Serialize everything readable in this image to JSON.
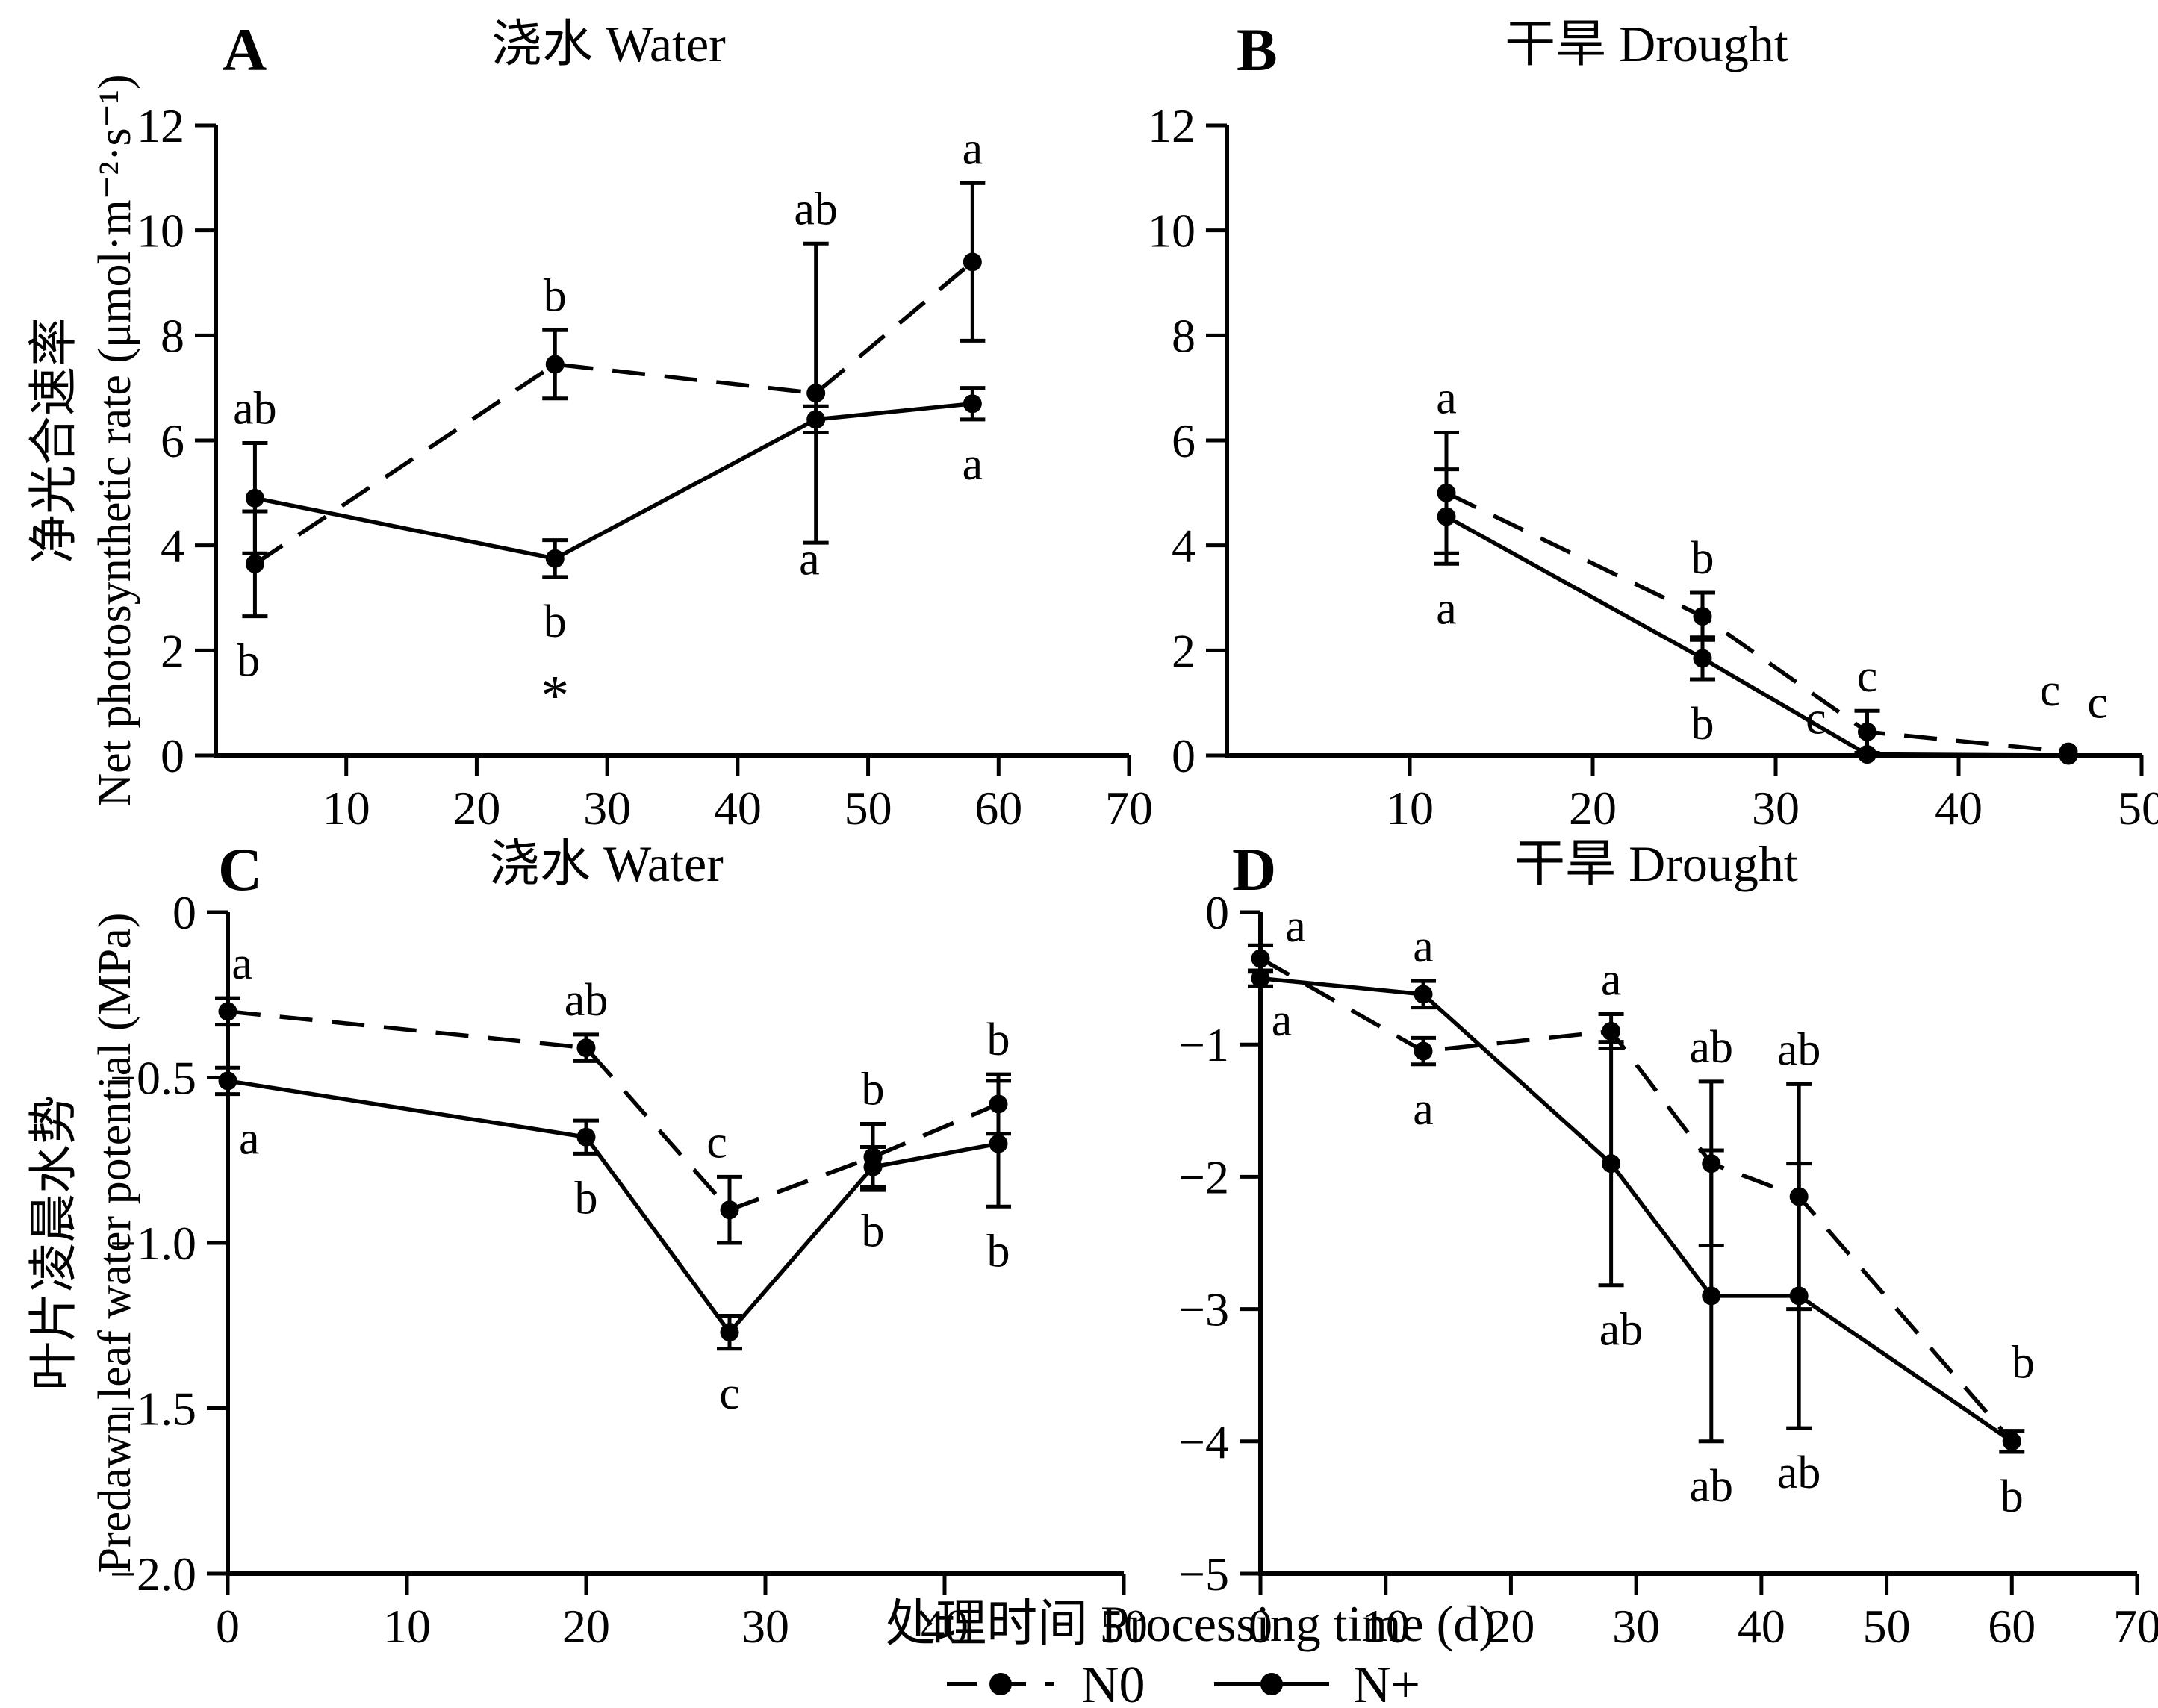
{
  "figure": {
    "background": "#ffffff",
    "ink": "#000000",
    "x_axis_title": "处理时间 Processing time (d)",
    "y_axis_titles": [
      {
        "zh": "净光合速率",
        "en": "Net photosynthetic rate (μmol·m⁻²·s⁻¹)"
      },
      {
        "zh": "叶片凌晨水势",
        "en": "Predawn leaf water potential (MPa)"
      }
    ],
    "legend": [
      {
        "label": "N0",
        "style": "dashed"
      },
      {
        "label": "N+",
        "style": "solid"
      }
    ]
  },
  "chart_data": [
    {
      "id": "A",
      "type": "line",
      "letter": "A",
      "title": "浇水 Water",
      "row": 0,
      "xlim": [
        0,
        70
      ],
      "ylim": [
        0,
        12
      ],
      "xticks": [
        10,
        20,
        30,
        40,
        50,
        60,
        70
      ],
      "xtick_labels": [
        "10",
        "20",
        "30",
        "40",
        "50",
        "60",
        "70"
      ],
      "yticks": [
        0,
        2,
        4,
        6,
        8,
        10,
        12
      ],
      "ytick_labels": [
        "0",
        "2",
        "4",
        "6",
        "8",
        "10",
        "12"
      ],
      "series": [
        {
          "name": "N0",
          "style": "dashed",
          "points": [
            {
              "x": 3,
              "y": 3.65,
              "err": 1.0,
              "label": "b",
              "label_pos": "below",
              "label_dx": -0.5
            },
            {
              "x": 26,
              "y": 7.45,
              "err": 0.65,
              "label": "b",
              "label_pos": "above"
            },
            {
              "x": 46,
              "y": 6.9,
              "err": 2.85,
              "label": "ab",
              "label_pos": "above"
            },
            {
              "x": 58,
              "y": 9.4,
              "err": 1.5,
              "label": "a",
              "label_pos": "above"
            }
          ]
        },
        {
          "name": "N+",
          "style": "solid",
          "points": [
            {
              "x": 3,
              "y": 4.9,
              "err": 1.05,
              "label": "ab",
              "label_pos": "above"
            },
            {
              "x": 26,
              "y": 3.75,
              "err": 0.35,
              "label": "b",
              "label_pos": "below",
              "extra": "*"
            },
            {
              "x": 46,
              "y": 6.4,
              "err": 0.25,
              "label": "a",
              "label_x": 45.5,
              "label_y": 3.45
            },
            {
              "x": 58,
              "y": 6.7,
              "err": 0.3,
              "label": "a",
              "label_pos": "below"
            }
          ]
        }
      ]
    },
    {
      "id": "B",
      "type": "line",
      "letter": "B",
      "title": "干旱 Drought",
      "row": 0,
      "xlim": [
        0,
        50
      ],
      "ylim": [
        0,
        12
      ],
      "xticks": [
        10,
        20,
        30,
        40,
        50
      ],
      "xtick_labels": [
        "10",
        "20",
        "30",
        "40",
        "50"
      ],
      "yticks": [
        0,
        2,
        4,
        6,
        8,
        10,
        12
      ],
      "ytick_labels": [
        "0",
        "2",
        "4",
        "6",
        "8",
        "10",
        "12"
      ],
      "series": [
        {
          "name": "N0",
          "style": "dashed",
          "points": [
            {
              "x": 12,
              "y": 5.0,
              "err": 1.15,
              "label": "a",
              "label_pos": "above"
            },
            {
              "x": 26,
              "y": 2.65,
              "err": 0.45,
              "label": "b",
              "label_pos": "above"
            },
            {
              "x": 35,
              "y": 0.45,
              "err": 0.4,
              "label": "c",
              "label_pos": "above"
            },
            {
              "x": 46,
              "y": 0.07,
              "err": 0,
              "label": "c",
              "label_x": 45.0,
              "label_y": 0.95
            }
          ]
        },
        {
          "name": "N+",
          "style": "solid",
          "points": [
            {
              "x": 12,
              "y": 4.55,
              "err": 0.9,
              "label": "a",
              "label_pos": "below"
            },
            {
              "x": 26,
              "y": 1.85,
              "err": 0.4,
              "label": "b",
              "label_pos": "below"
            },
            {
              "x": 35,
              "y": 0.02,
              "err": 0,
              "label": "c",
              "label_x": 32.2,
              "label_y": 0.42
            },
            {
              "x": 46,
              "y": 0.0,
              "err": 0,
              "label": "c",
              "label_x": 47.6,
              "label_y": 0.72
            }
          ]
        }
      ]
    },
    {
      "id": "C",
      "type": "line",
      "letter": "C",
      "title": "浇水 Water",
      "row": 1,
      "xlim": [
        0,
        50
      ],
      "ylim": [
        -2,
        0
      ],
      "xticks": [
        0,
        10,
        20,
        30,
        40,
        50
      ],
      "xtick_labels": [
        "0",
        "10",
        "20",
        "30",
        "40",
        "50"
      ],
      "yticks": [
        0,
        -0.5,
        -1.0,
        -1.5,
        -2.0
      ],
      "ytick_labels": [
        "0",
        "−0.5",
        "−1.0",
        "−1.5",
        "−2.0"
      ],
      "series": [
        {
          "name": "N0",
          "style": "dashed",
          "points": [
            {
              "x": 0,
              "y": -0.3,
              "err": 0.04,
              "label": "a",
              "label_pos": "above",
              "label_dx": 0.8
            },
            {
              "x": 20,
              "y": -0.41,
              "err": 0.04,
              "label": "ab",
              "label_pos": "above"
            },
            {
              "x": 28,
              "y": -0.9,
              "err": 0.1,
              "label": "c",
              "label_pos": "above",
              "label_dx": -0.7
            },
            {
              "x": 36,
              "y": -0.74,
              "err": 0.1,
              "label": "b",
              "label_pos": "above"
            },
            {
              "x": 43,
              "y": -0.58,
              "err": 0.09,
              "label": "b",
              "label_pos": "above"
            }
          ]
        },
        {
          "name": "N+",
          "style": "solid",
          "points": [
            {
              "x": 0,
              "y": -0.51,
              "err": 0.04,
              "label": "a",
              "label_pos": "below",
              "label_dx": 1.2
            },
            {
              "x": 20,
              "y": -0.68,
              "err": 0.05,
              "label": "b",
              "label_pos": "below"
            },
            {
              "x": 28,
              "y": -1.27,
              "err": 0.05,
              "label": "c",
              "label_pos": "below"
            },
            {
              "x": 36,
              "y": -0.77,
              "err": 0.06,
              "label": "b",
              "label_pos": "below"
            },
            {
              "x": 43,
              "y": -0.7,
              "err": 0.19,
              "label": "b",
              "label_pos": "below"
            }
          ]
        }
      ]
    },
    {
      "id": "D",
      "type": "line",
      "letter": "D",
      "title": "干旱 Drought",
      "row": 1,
      "xlim": [
        0,
        70
      ],
      "ylim": [
        -5,
        0
      ],
      "xticks": [
        0,
        10,
        20,
        30,
        40,
        50,
        60,
        70
      ],
      "xtick_labels": [
        "0",
        "10",
        "20",
        "30",
        "40",
        "50",
        "60",
        "70"
      ],
      "yticks": [
        0,
        -1,
        -2,
        -3,
        -4,
        -5
      ],
      "ytick_labels": [
        "0",
        "−1",
        "−2",
        "−3",
        "−4",
        "−5"
      ],
      "series": [
        {
          "name": "N0",
          "style": "dashed",
          "points": [
            {
              "x": 0,
              "y": -0.35,
              "err": 0.1,
              "label": "a",
              "label_x": 2.8,
              "label_y": -0.22
            },
            {
              "x": 13,
              "y": -1.05,
              "err": 0.1,
              "label": "a",
              "label_pos": "below"
            },
            {
              "x": 28,
              "y": -0.9,
              "err": 0.13,
              "label": "a",
              "label_pos": "above"
            },
            {
              "x": 36,
              "y": -1.9,
              "err": 0.62,
              "label": "ab",
              "label_pos": "above"
            },
            {
              "x": 43,
              "y": -2.15,
              "err": 0.85,
              "label": "ab",
              "label_pos": "above"
            },
            {
              "x": 60,
              "y": -4.0,
              "err": 0,
              "label": "b",
              "label_x": 60.9,
              "label_y": -3.52
            }
          ]
        },
        {
          "name": "N+",
          "style": "solid",
          "points": [
            {
              "x": 0,
              "y": -0.5,
              "err": 0.06,
              "label": "a",
              "label_x": 1.7,
              "label_y": -0.93
            },
            {
              "x": 13,
              "y": -0.62,
              "err": 0.1,
              "label": "a",
              "label_pos": "above"
            },
            {
              "x": 28,
              "y": -1.9,
              "err": 0.92,
              "label": "ab",
              "label_pos": "below",
              "label_dx": 0.8
            },
            {
              "x": 36,
              "y": -2.9,
              "err": 1.1,
              "label": "ab",
              "label_pos": "below"
            },
            {
              "x": 43,
              "y": -2.9,
              "err": 1.0,
              "label": "ab",
              "label_pos": "below"
            },
            {
              "x": 60,
              "y": -4.0,
              "err": 0.08,
              "label": "b",
              "label_pos": "below"
            }
          ]
        }
      ]
    }
  ]
}
